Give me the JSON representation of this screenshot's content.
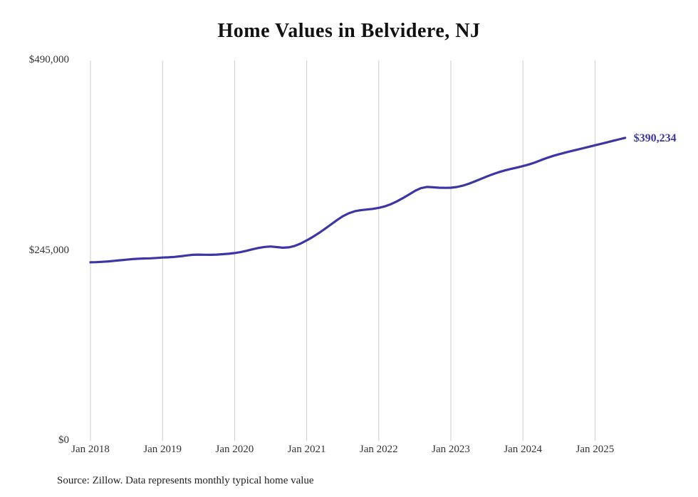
{
  "chart_data": {
    "type": "line",
    "title": "Home Values in Belvidere, NJ",
    "source_note": "Source: Zillow. Data represents monthly typical home value",
    "line_color": "#3b36a5",
    "grid_color": "#cccccc",
    "grid": "vertical-only",
    "ylim": [
      0,
      490000
    ],
    "y_ticks": [
      {
        "value": 0,
        "label": "$0"
      },
      {
        "value": 245000,
        "label": "$245,000"
      },
      {
        "value": 490000,
        "label": "$490,000"
      }
    ],
    "x_ticks": [
      "Jan 2018",
      "Jan 2019",
      "Jan 2020",
      "Jan 2021",
      "Jan 2022",
      "Jan 2023",
      "Jan 2024",
      "Jan 2025"
    ],
    "end_label": "$390,234",
    "series": [
      {
        "name": "Monthly typical home value",
        "start_month": "2018-01",
        "values": [
          230000,
          230200,
          230600,
          231200,
          231900,
          232600,
          233400,
          234100,
          234600,
          234900,
          235100,
          235600,
          236100,
          236400,
          236900,
          237800,
          238800,
          239600,
          239900,
          239700,
          239600,
          239900,
          240400,
          241000,
          241900,
          243100,
          244800,
          246700,
          248500,
          249800,
          250300,
          249600,
          248800,
          249200,
          251000,
          254200,
          258200,
          262600,
          267500,
          272800,
          278400,
          284100,
          289200,
          293100,
          295700,
          297100,
          297900,
          298800,
          300100,
          302000,
          304800,
          308400,
          312600,
          317200,
          321800,
          325400,
          327100,
          326600,
          326100,
          325900,
          326100,
          327000,
          328700,
          331200,
          334200,
          337400,
          340500,
          343500,
          346100,
          348300,
          350200,
          352000,
          353900,
          356000,
          358600,
          361500,
          364400,
          367000,
          369200,
          371200,
          373100,
          375000,
          376900,
          378800,
          380700,
          382600,
          384500,
          386400,
          388300,
          390234
        ]
      }
    ]
  }
}
